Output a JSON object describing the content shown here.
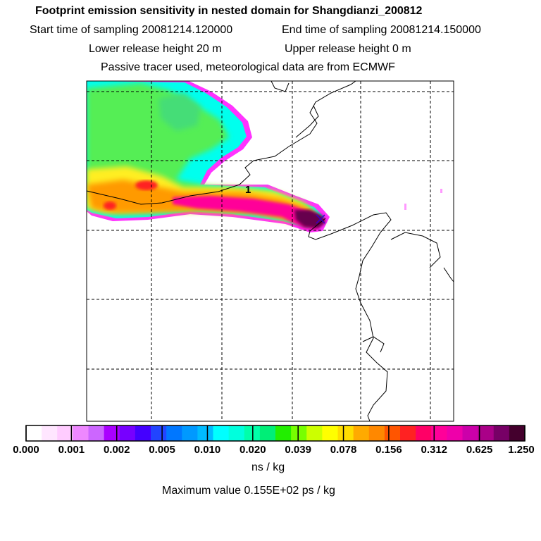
{
  "header": {
    "title": "Footprint emission sensitivity in nested domain for Shangdianzi_200812",
    "start_time": "Start time of sampling 20081214.120000",
    "end_time": "End time of sampling 20081214.150000",
    "lower_height": "Lower release height   20 m",
    "upper_height": "Upper release height    0 m",
    "tracer_note": "Passive tracer used, meteorological data are from ECMWF"
  },
  "map": {
    "site_label": "1",
    "gridlines": "dashed",
    "plume_colors": {
      "outer": "#ff33ff",
      "cyan": "#00ffee",
      "green": "#44ee66",
      "yellow": "#ffee00",
      "orange": "#ff9a00",
      "red": "#ff2222",
      "magenta": "#ff0099",
      "dark": "#66004d"
    }
  },
  "colorbar": {
    "segment_colors": [
      "#ffffff",
      "#ffe6ff",
      "#ffccff",
      "#ee88ff",
      "#cc66ff",
      "#aa00ff",
      "#7700ff",
      "#4400ff",
      "#2244ff",
      "#0077ff",
      "#0099ff",
      "#00bbff",
      "#00ffff",
      "#00ffdd",
      "#00ffaa",
      "#00ee77",
      "#22ee00",
      "#77ff00",
      "#ccff00",
      "#ffff00",
      "#ffdd00",
      "#ffaa00",
      "#ff8800",
      "#ff5500",
      "#ff2222",
      "#ff0066",
      "#ff0099",
      "#ee00aa",
      "#cc00aa",
      "#aa0088",
      "#770066",
      "#44002d"
    ],
    "tick_labels": [
      "0.000",
      "0.001",
      "0.002",
      "0.005",
      "0.010",
      "0.020",
      "0.039",
      "0.078",
      "0.156",
      "0.312",
      "0.625",
      "1.250"
    ],
    "units": "ns / kg",
    "max_value": "Maximum value  0.155E+02 ps / kg"
  }
}
